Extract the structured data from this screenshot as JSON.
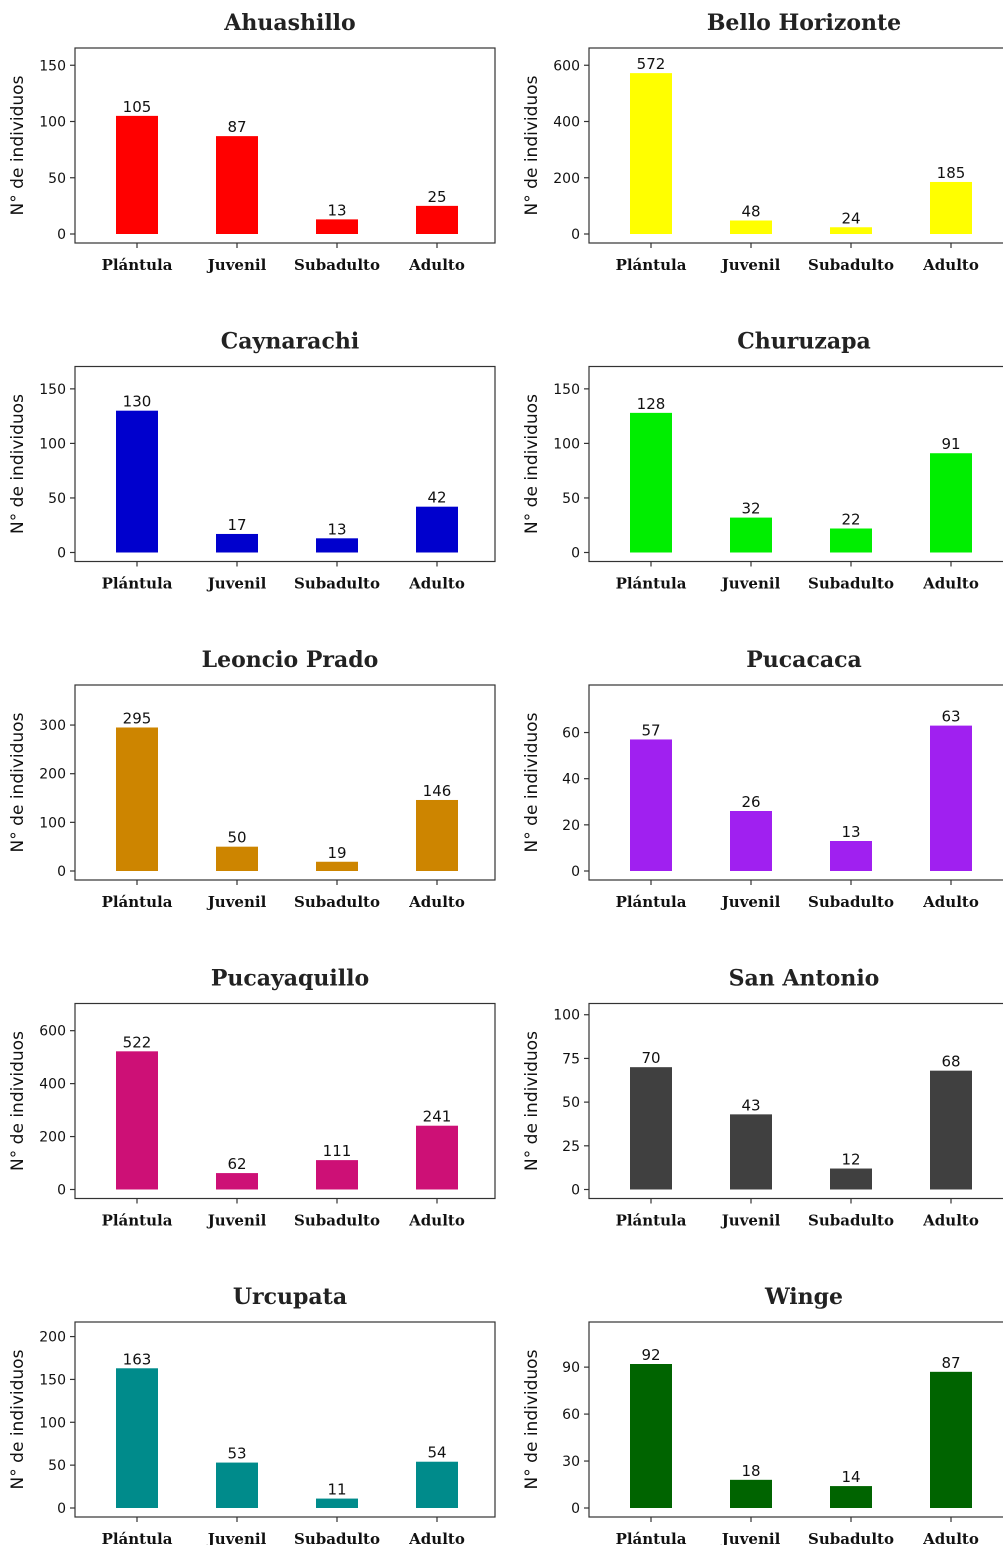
{
  "chart_data": [
    {
      "type": "bar",
      "title": "Ahuashillo",
      "ylabel": "N° de individuos",
      "categories": [
        "Plántula",
        "Juvenil",
        "Subadulto",
        "Adulto"
      ],
      "values": [
        105,
        87,
        13,
        25
      ],
      "ylim": [
        0,
        160
      ],
      "yticks": [
        0,
        50,
        100,
        150
      ],
      "ytick_labels": [
        "0",
        "50",
        "100",
        "150"
      ],
      "color": "#ff0000",
      "grid": false
    },
    {
      "type": "bar",
      "title": "Bello Horizonte",
      "ylabel": "N° de individuos",
      "categories": [
        "Plántula",
        "Juvenil",
        "Subadulto",
        "Adulto"
      ],
      "values": [
        572,
        48,
        24,
        185
      ],
      "ylim": [
        0,
        640
      ],
      "yticks": [
        0,
        200,
        400,
        600
      ],
      "ytick_labels": [
        "0",
        "200",
        "400",
        "600"
      ],
      "color": "#ffff00",
      "grid": false
    },
    {
      "type": "bar",
      "title": "Caynarachi",
      "ylabel": "N° de individuos",
      "categories": [
        "Plántula",
        "Juvenil",
        "Subadulto",
        "Adulto"
      ],
      "values": [
        130,
        17,
        13,
        42
      ],
      "ylim": [
        0,
        165
      ],
      "yticks": [
        0,
        50,
        100,
        150
      ],
      "ytick_labels": [
        "0",
        "50",
        "100",
        "150"
      ],
      "color": "#0000cd",
      "grid": false
    },
    {
      "type": "bar",
      "title": "Churuzapa",
      "ylabel": "N° de individuos",
      "categories": [
        "Plántula",
        "Juvenil",
        "Subadulto",
        "Adulto"
      ],
      "values": [
        128,
        32,
        22,
        91
      ],
      "ylim": [
        0,
        165
      ],
      "yticks": [
        0,
        50,
        100,
        150
      ],
      "ytick_labels": [
        "0",
        "50",
        "100",
        "150"
      ],
      "color": "#00ee00",
      "grid": false
    },
    {
      "type": "bar",
      "title": "Leoncio Prado",
      "ylabel": "N° de individuos",
      "categories": [
        "Plántula",
        "Juvenil",
        "Subadulto",
        "Adulto"
      ],
      "values": [
        295,
        50,
        19,
        146
      ],
      "ylim": [
        0,
        370
      ],
      "yticks": [
        0,
        100,
        200,
        300
      ],
      "ytick_labels": [
        "0",
        "100",
        "200",
        "300"
      ],
      "color": "#cd8500",
      "grid": false
    },
    {
      "type": "bar",
      "title": "Pucacaca",
      "ylabel": "N° de individuos",
      "categories": [
        "Plántula",
        "Juvenil",
        "Subadulto",
        "Adulto"
      ],
      "values": [
        57,
        26,
        13,
        63
      ],
      "ylim": [
        0,
        78
      ],
      "yticks": [
        0,
        20,
        40,
        60
      ],
      "ytick_labels": [
        "0",
        "20",
        "40",
        "60"
      ],
      "color": "#a020f0",
      "grid": false
    },
    {
      "type": "bar",
      "title": "Pucayaquillo",
      "ylabel": "N° de individuos",
      "categories": [
        "Plántula",
        "Juvenil",
        "Subadulto",
        "Adulto"
      ],
      "values": [
        522,
        62,
        111,
        241
      ],
      "ylim": [
        0,
        680
      ],
      "yticks": [
        0,
        200,
        400,
        600
      ],
      "ytick_labels": [
        "0",
        "200",
        "400",
        "600"
      ],
      "color": "#cd1076",
      "grid": false
    },
    {
      "type": "bar",
      "title": "San Antonio",
      "ylabel": "N° de individuos",
      "categories": [
        "Plántula",
        "Juvenil",
        "Subadulto",
        "Adulto"
      ],
      "values": [
        70,
        43,
        12,
        68
      ],
      "ylim": [
        0,
        103
      ],
      "yticks": [
        0,
        25,
        50,
        75,
        100
      ],
      "ytick_labels": [
        "0",
        "25",
        "50",
        "75",
        "100"
      ],
      "color": "#404040",
      "grid": false
    },
    {
      "type": "bar",
      "title": "Urcupata",
      "ylabel": "N° de individuos",
      "categories": [
        "Plántula",
        "Juvenil",
        "Subadulto",
        "Adulto"
      ],
      "values": [
        163,
        53,
        11,
        54
      ],
      "ylim": [
        0,
        210
      ],
      "yticks": [
        0,
        50,
        100,
        150,
        200
      ],
      "ytick_labels": [
        "0",
        "50",
        "100",
        "150",
        "200"
      ],
      "color": "#008b8b",
      "grid": false
    },
    {
      "type": "bar",
      "title": "Winge",
      "ylabel": "N° de individuos",
      "categories": [
        "Plántula",
        "Juvenil",
        "Subadulto",
        "Adulto"
      ],
      "values": [
        92,
        18,
        14,
        87
      ],
      "ylim": [
        0,
        115
      ],
      "yticks": [
        0,
        30,
        60,
        90
      ],
      "ytick_labels": [
        "0",
        "30",
        "60",
        "90"
      ],
      "color": "#006400",
      "grid": false
    }
  ]
}
